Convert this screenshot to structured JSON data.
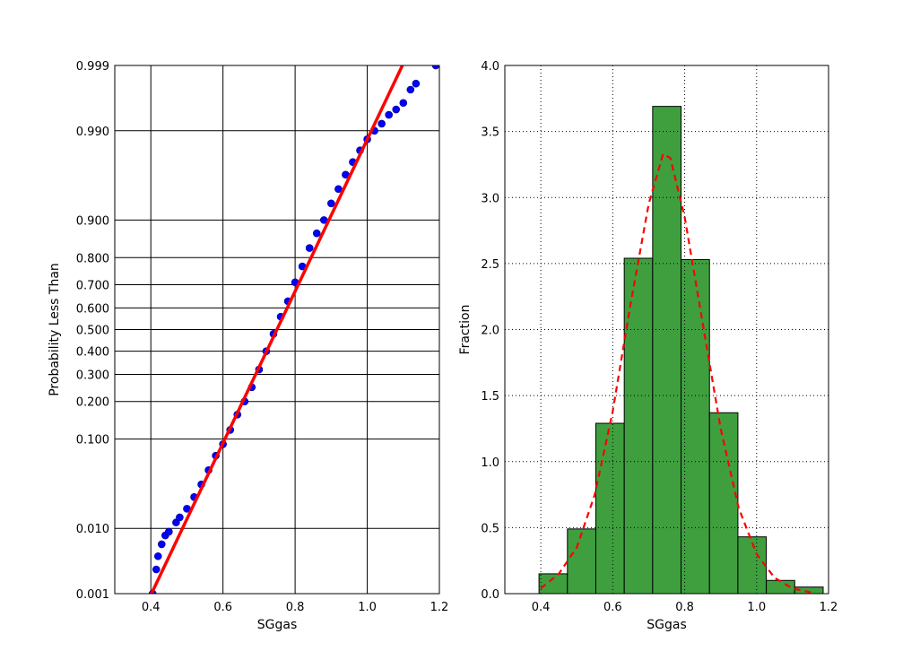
{
  "chart_data": [
    {
      "type": "scatter",
      "xlabel": "SGgas",
      "ylabel": "Probability Less Than",
      "xlim": [
        0.3,
        1.2
      ],
      "y_scale": "normal-probability",
      "ylim": [
        0.001,
        0.999
      ],
      "xticks": [
        "0.4",
        "0.6",
        "0.8",
        "1.0",
        "1.2"
      ],
      "yticks": [
        {
          "p": 0.001,
          "label": "0.001"
        },
        {
          "p": 0.01,
          "label": "0.010"
        },
        {
          "p": 0.1,
          "label": "0.100"
        },
        {
          "p": 0.2,
          "label": "0.200"
        },
        {
          "p": 0.3,
          "label": "0.300"
        },
        {
          "p": 0.4,
          "label": "0.400"
        },
        {
          "p": 0.5,
          "label": "0.500"
        },
        {
          "p": 0.6,
          "label": "0.600"
        },
        {
          "p": 0.7,
          "label": "0.700"
        },
        {
          "p": 0.8,
          "label": "0.800"
        },
        {
          "p": 0.9,
          "label": "0.900"
        },
        {
          "p": 0.99,
          "label": "0.990"
        },
        {
          "p": 0.999,
          "label": "0.999"
        }
      ],
      "grid": true,
      "series": [
        {
          "kind": "points",
          "color": "#0000ff",
          "points": [
            [
              0.405,
              0.001
            ],
            [
              0.415,
              0.0025
            ],
            [
              0.42,
              0.004
            ],
            [
              0.43,
              0.006
            ],
            [
              0.44,
              0.008
            ],
            [
              0.45,
              0.009
            ],
            [
              0.47,
              0.012
            ],
            [
              0.48,
              0.014
            ],
            [
              0.5,
              0.018
            ],
            [
              0.52,
              0.025
            ],
            [
              0.54,
              0.035
            ],
            [
              0.56,
              0.05
            ],
            [
              0.58,
              0.07
            ],
            [
              0.6,
              0.09
            ],
            [
              0.62,
              0.12
            ],
            [
              0.64,
              0.16
            ],
            [
              0.66,
              0.2
            ],
            [
              0.68,
              0.25
            ],
            [
              0.7,
              0.32
            ],
            [
              0.72,
              0.4
            ],
            [
              0.74,
              0.48
            ],
            [
              0.76,
              0.56
            ],
            [
              0.78,
              0.63
            ],
            [
              0.8,
              0.71
            ],
            [
              0.82,
              0.77
            ],
            [
              0.84,
              0.83
            ],
            [
              0.86,
              0.87
            ],
            [
              0.88,
              0.9
            ],
            [
              0.9,
              0.93
            ],
            [
              0.92,
              0.95
            ],
            [
              0.94,
              0.965
            ],
            [
              0.96,
              0.975
            ],
            [
              0.98,
              0.982
            ],
            [
              1.0,
              0.987
            ],
            [
              1.02,
              0.99
            ],
            [
              1.04,
              0.992
            ],
            [
              1.06,
              0.994
            ],
            [
              1.08,
              0.995
            ],
            [
              1.1,
              0.996
            ],
            [
              1.12,
              0.9975
            ],
            [
              1.135,
              0.998
            ],
            [
              1.19,
              0.999
            ]
          ]
        },
        {
          "kind": "fit-line",
          "color": "#ff0000",
          "points": [
            [
              0.39,
              0.0007
            ],
            [
              1.12,
              0.9995
            ]
          ]
        }
      ]
    },
    {
      "type": "bar",
      "xlabel": "SGgas",
      "ylabel": "Fraction",
      "xlim": [
        0.3,
        1.2
      ],
      "ylim": [
        0.0,
        4.0
      ],
      "xticks": [
        "0.4",
        "0.6",
        "0.8",
        "1.0",
        "1.2"
      ],
      "yticks": [
        "0.0",
        "0.5",
        "1.0",
        "1.5",
        "2.0",
        "2.5",
        "3.0",
        "3.5",
        "4.0"
      ],
      "grid": true,
      "bar_color": "#3f9f3f",
      "bin_edges": [
        0.395,
        0.474,
        0.553,
        0.632,
        0.711,
        0.79,
        0.869,
        0.948,
        1.027,
        1.106,
        1.185
      ],
      "values": [
        0.15,
        0.49,
        1.29,
        2.54,
        3.69,
        2.53,
        1.37,
        0.43,
        0.1,
        0.05
      ],
      "series": [
        {
          "kind": "dashed-curve",
          "color": "#ff0000",
          "points": [
            [
              0.4,
              0.04
            ],
            [
              0.45,
              0.15
            ],
            [
              0.5,
              0.35
            ],
            [
              0.55,
              0.75
            ],
            [
              0.6,
              1.38
            ],
            [
              0.65,
              2.2
            ],
            [
              0.7,
              2.95
            ],
            [
              0.74,
              3.33
            ],
            [
              0.76,
              3.3
            ],
            [
              0.8,
              2.85
            ],
            [
              0.85,
              2.05
            ],
            [
              0.9,
              1.25
            ],
            [
              0.95,
              0.65
            ],
            [
              1.0,
              0.3
            ],
            [
              1.05,
              0.12
            ],
            [
              1.1,
              0.04
            ],
            [
              1.15,
              0.01
            ]
          ]
        }
      ]
    }
  ]
}
